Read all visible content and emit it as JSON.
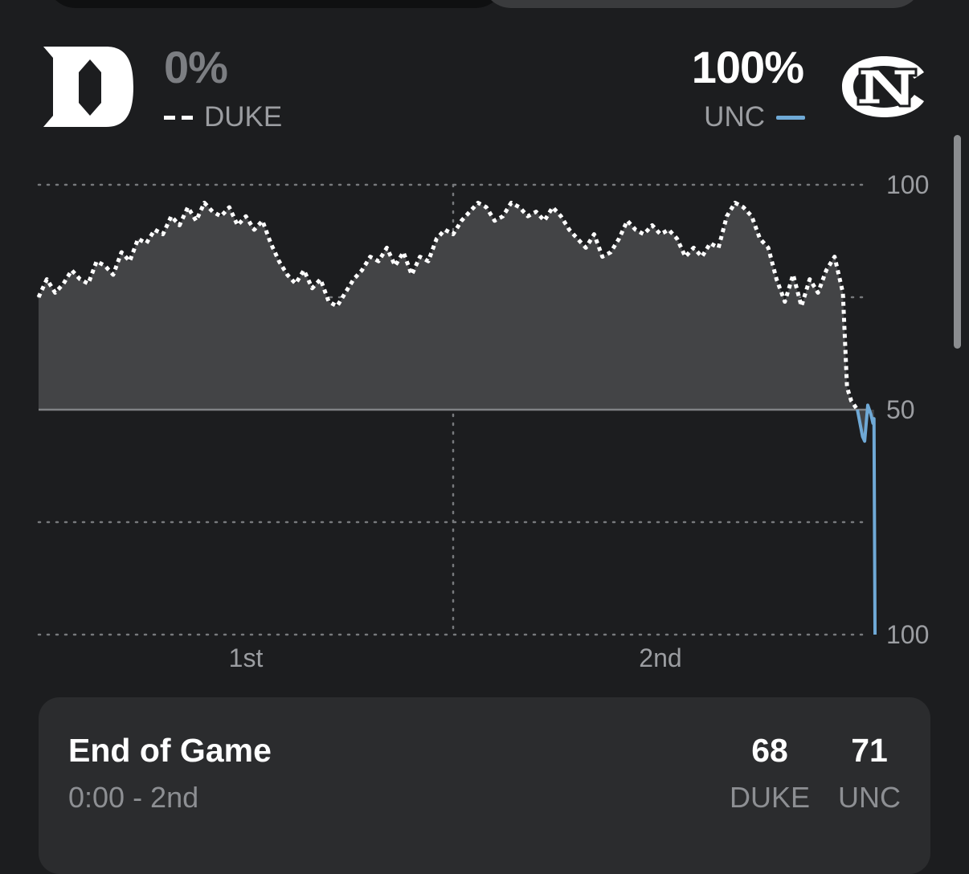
{
  "header": {
    "duke_pct": "0%",
    "duke_label": "DUKE",
    "unc_pct": "100%",
    "unc_label": "UNC"
  },
  "colors": {
    "duke_line": "#ffffff",
    "unc_line": "#6fa9d6",
    "area_fill": "#434446",
    "background": "#1c1d1f"
  },
  "icons": {
    "duke_logo": "duke-d-logo",
    "unc_logo": "unc-nc-logo"
  },
  "chart_data": {
    "type": "line",
    "title": "",
    "xlabel": "",
    "ylabel": "",
    "x_ticks": [
      "1st",
      "2nd"
    ],
    "y_ticks": [
      "100",
      "50",
      "100"
    ],
    "y_range": [
      -100,
      100
    ],
    "y_note_convention": "positive = Duke win probability above 50 (top half), negative = UNC",
    "x_range": [
      0,
      40
    ],
    "grid": true,
    "series": [
      {
        "name": "DUKE",
        "style": "dotted",
        "points": [
          [
            0.0,
            75
          ],
          [
            0.4,
            79
          ],
          [
            0.8,
            76
          ],
          [
            1.2,
            78
          ],
          [
            1.6,
            81
          ],
          [
            2.0,
            79
          ],
          [
            2.4,
            78
          ],
          [
            2.8,
            83
          ],
          [
            3.2,
            82
          ],
          [
            3.6,
            80
          ],
          [
            4.0,
            85
          ],
          [
            4.4,
            83
          ],
          [
            4.8,
            88
          ],
          [
            5.2,
            87
          ],
          [
            5.6,
            90
          ],
          [
            6.0,
            89
          ],
          [
            6.4,
            93
          ],
          [
            6.8,
            91
          ],
          [
            7.2,
            95
          ],
          [
            7.6,
            92
          ],
          [
            8.0,
            96
          ],
          [
            8.4,
            94
          ],
          [
            8.8,
            93
          ],
          [
            9.2,
            95
          ],
          [
            9.6,
            91
          ],
          [
            10.0,
            93
          ],
          [
            10.4,
            90
          ],
          [
            10.8,
            92
          ],
          [
            11.2,
            87
          ],
          [
            11.6,
            83
          ],
          [
            12.0,
            80
          ],
          [
            12.4,
            78
          ],
          [
            12.8,
            81
          ],
          [
            13.2,
            77
          ],
          [
            13.6,
            79
          ],
          [
            14.0,
            74
          ],
          [
            14.4,
            73
          ],
          [
            14.8,
            76
          ],
          [
            15.2,
            79
          ],
          [
            15.6,
            81
          ],
          [
            16.0,
            84
          ],
          [
            16.4,
            83
          ],
          [
            16.8,
            86
          ],
          [
            17.2,
            82
          ],
          [
            17.6,
            85
          ],
          [
            18.0,
            80
          ],
          [
            18.4,
            84
          ],
          [
            18.8,
            83
          ],
          [
            19.2,
            88
          ],
          [
            19.6,
            90
          ],
          [
            20.0,
            89
          ],
          [
            20.4,
            92
          ],
          [
            20.8,
            94
          ],
          [
            21.2,
            96
          ],
          [
            21.6,
            95
          ],
          [
            22.0,
            92
          ],
          [
            22.4,
            93
          ],
          [
            22.8,
            96
          ],
          [
            23.2,
            95
          ],
          [
            23.6,
            93
          ],
          [
            24.0,
            94
          ],
          [
            24.4,
            92
          ],
          [
            24.8,
            95
          ],
          [
            25.2,
            93
          ],
          [
            25.6,
            90
          ],
          [
            26.0,
            88
          ],
          [
            26.4,
            86
          ],
          [
            26.8,
            89
          ],
          [
            27.2,
            84
          ],
          [
            27.6,
            85
          ],
          [
            28.0,
            88
          ],
          [
            28.4,
            92
          ],
          [
            28.8,
            90
          ],
          [
            29.2,
            89
          ],
          [
            29.6,
            91
          ],
          [
            30.0,
            89
          ],
          [
            30.4,
            90
          ],
          [
            30.8,
            88
          ],
          [
            31.2,
            84
          ],
          [
            31.6,
            86
          ],
          [
            32.0,
            84
          ],
          [
            32.4,
            87
          ],
          [
            32.8,
            86
          ],
          [
            33.2,
            93
          ],
          [
            33.6,
            96
          ],
          [
            34.0,
            95
          ],
          [
            34.4,
            93
          ],
          [
            34.8,
            88
          ],
          [
            35.2,
            86
          ],
          [
            35.6,
            79
          ],
          [
            36.0,
            74
          ],
          [
            36.4,
            80
          ],
          [
            36.8,
            73
          ],
          [
            37.2,
            79
          ],
          [
            37.6,
            76
          ],
          [
            38.0,
            81
          ],
          [
            38.4,
            84
          ],
          [
            38.8,
            76
          ],
          [
            39.0,
            55
          ],
          [
            39.2,
            52
          ],
          [
            39.5,
            50
          ]
        ]
      },
      {
        "name": "UNC",
        "style": "solid",
        "points": [
          [
            39.5,
            50
          ],
          [
            39.75,
            44
          ],
          [
            39.85,
            43
          ],
          [
            40.0,
            51
          ],
          [
            40.15,
            49
          ],
          [
            40.25,
            47
          ],
          [
            40.3,
            48
          ],
          [
            40.35,
            -100
          ]
        ]
      }
    ]
  },
  "status": {
    "title": "End of Game",
    "clock": "0:00 - 2nd",
    "away_score": "68",
    "home_score": "71",
    "away_abbr": "DUKE",
    "home_abbr": "UNC"
  }
}
